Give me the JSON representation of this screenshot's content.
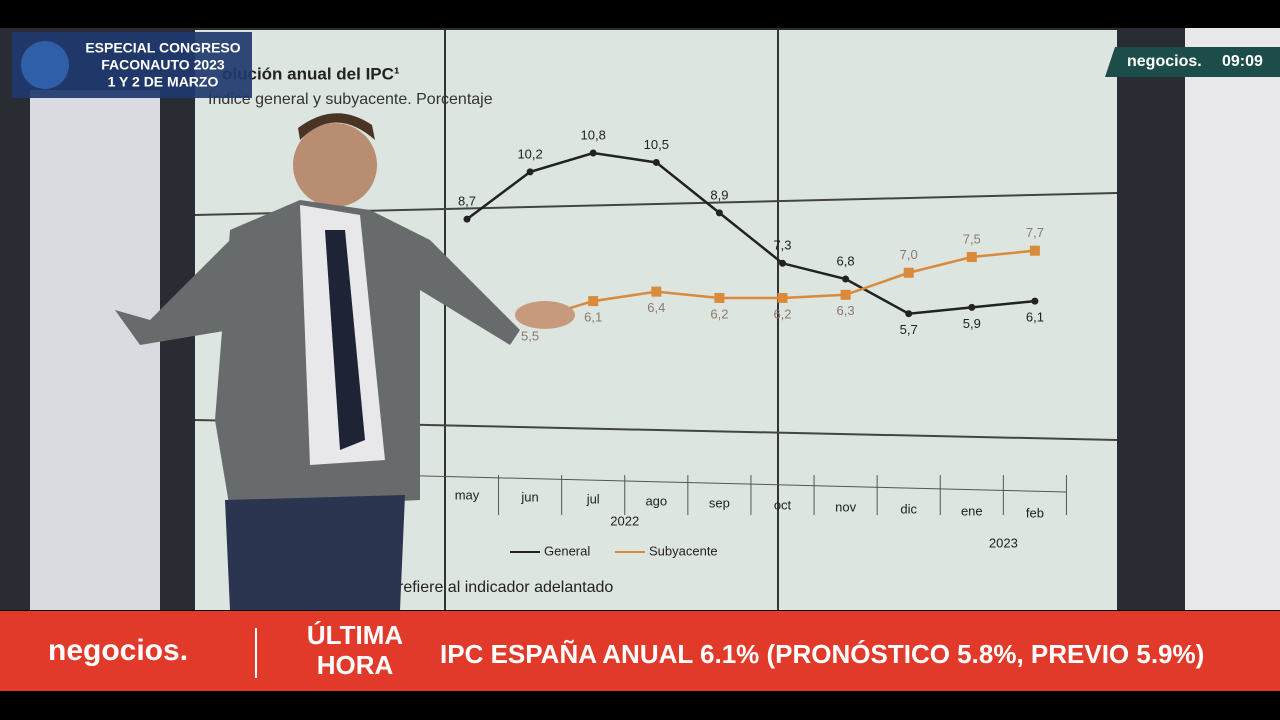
{
  "broadcast": {
    "event": [
      "ESPECIAL CONGRESO",
      "FACONAUTO 2023",
      "1 Y 2 DE MARZO"
    ],
    "channel": "negocios.",
    "time": "09:09",
    "ticker": {
      "brand": "negocios.",
      "tag": [
        "ÚLTIMA",
        "HORA"
      ],
      "headline": "IPC ESPAÑA ANUAL 6.1% (PRONÓSTICO 5.8%, PREVIO 5.9%)"
    }
  },
  "chart_data": {
    "type": "line",
    "title": "olución anual del IPC¹",
    "subtitle": "Índice general y subyacente. Porcentaje",
    "footnote": "refiere al indicador adelantado",
    "categories": [
      "may",
      "jun",
      "jul",
      "ago",
      "sep",
      "oct",
      "nov",
      "dic",
      "ene",
      "feb"
    ],
    "years": [
      {
        "label": "2022",
        "first": 0,
        "last": 5
      },
      {
        "label": "2023",
        "first": 8,
        "last": 9
      }
    ],
    "series": [
      {
        "name": "General",
        "color": "#222222",
        "values": [
          8.7,
          10.2,
          10.8,
          10.5,
          8.9,
          7.3,
          6.8,
          5.7,
          5.9,
          6.1
        ],
        "value_labels": [
          "8,7",
          "10,2",
          "10,8",
          "10,5",
          "8,9",
          "7,3",
          "6,8",
          "5,7",
          "5,9",
          "6,1"
        ]
      },
      {
        "name": "Subyacente",
        "color": "#d98a3a",
        "values": [
          null,
          5.5,
          6.1,
          6.4,
          6.2,
          6.2,
          6.3,
          7.0,
          7.5,
          7.7
        ],
        "value_labels": [
          null,
          "5,5",
          "6,1",
          "6,4",
          "6,2",
          "6,2",
          "6,3",
          "7,0",
          "7,5",
          "7,7"
        ]
      }
    ]
  }
}
